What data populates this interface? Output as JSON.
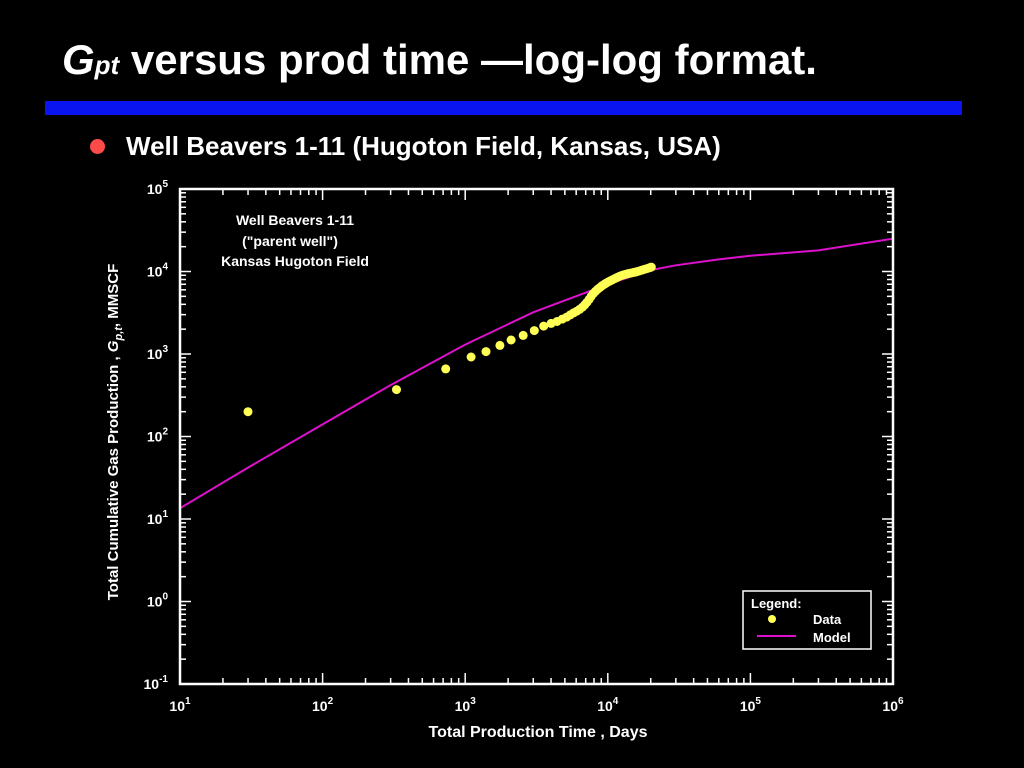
{
  "slide": {
    "title_symbol": "G",
    "title_subscript": "pt",
    "title_rest": " versus prod time —log-log format.",
    "rule_color": "#0a14f0",
    "bullet_color": "#ff4a4a",
    "bullet_text": "Well Beavers 1-11 (Hugoton Field, Kansas, USA)"
  },
  "chart_data": {
    "type": "scatter",
    "x_scale": "log",
    "y_scale": "log",
    "xlim": [
      10,
      1000000
    ],
    "ylim": [
      0.1,
      100000
    ],
    "x_tick_exponents": [
      "1",
      "2",
      "3",
      "4",
      "5",
      "6"
    ],
    "y_tick_exponents": [
      "-1",
      "0",
      "1",
      "2",
      "3",
      "4",
      "5"
    ],
    "tick_base": "10",
    "xlabel": "Total Production Time , Days",
    "ylabel_prefix": "Total Cumulative Gas Production ,  ",
    "ylabel_symbol": "G",
    "ylabel_subscript": "p,t",
    "ylabel_suffix": ", MMSCF",
    "annotation": [
      "Well Beavers 1-11",
      "(\"parent well\")",
      "Kansas Hugoton Field"
    ],
    "legend": {
      "title": "Legend:",
      "position": "bottom-right",
      "items": [
        "Data",
        "Model"
      ]
    },
    "grid": false,
    "series": [
      {
        "name": "Data",
        "kind": "points",
        "color": "#ffff55",
        "points": [
          [
            30,
            200
          ],
          [
            330,
            370
          ],
          [
            730,
            660
          ],
          [
            1100,
            920
          ],
          [
            1400,
            1070
          ],
          [
            1750,
            1270
          ],
          [
            2100,
            1480
          ],
          [
            2550,
            1680
          ],
          [
            3050,
            1920
          ],
          [
            3550,
            2180
          ],
          [
            4000,
            2350
          ],
          [
            4400,
            2480
          ],
          [
            4800,
            2650
          ],
          [
            5150,
            2800
          ],
          [
            5450,
            2980
          ],
          [
            5750,
            3150
          ],
          [
            6050,
            3300
          ],
          [
            6350,
            3480
          ],
          [
            6650,
            3700
          ],
          [
            6900,
            3950
          ],
          [
            7150,
            4250
          ],
          [
            7400,
            4600
          ],
          [
            7650,
            5000
          ],
          [
            7900,
            5400
          ],
          [
            8200,
            5750
          ],
          [
            8500,
            6100
          ],
          [
            8800,
            6400
          ],
          [
            9100,
            6700
          ],
          [
            9400,
            6950
          ],
          [
            9700,
            7200
          ],
          [
            10050,
            7450
          ],
          [
            10400,
            7700
          ],
          [
            10800,
            7950
          ],
          [
            11200,
            8200
          ],
          [
            11600,
            8450
          ],
          [
            12000,
            8700
          ],
          [
            12500,
            8950
          ],
          [
            13000,
            9150
          ],
          [
            13500,
            9300
          ],
          [
            14000,
            9450
          ],
          [
            14600,
            9600
          ],
          [
            15200,
            9750
          ],
          [
            15800,
            9900
          ],
          [
            16500,
            10100
          ],
          [
            17200,
            10350
          ],
          [
            18000,
            10600
          ],
          [
            18800,
            10850
          ],
          [
            19600,
            11100
          ],
          [
            20200,
            11300
          ]
        ]
      },
      {
        "name": "Model",
        "kind": "line",
        "color": "#dd11cc",
        "points": [
          [
            10,
            13.5
          ],
          [
            30,
            42
          ],
          [
            100,
            140
          ],
          [
            300,
            420
          ],
          [
            1000,
            1300
          ],
          [
            3000,
            3200
          ],
          [
            10000,
            7000
          ],
          [
            20000,
            10400
          ],
          [
            30000,
            11900
          ],
          [
            60000,
            14000
          ],
          [
            100000,
            15500
          ],
          [
            300000,
            18000
          ],
          [
            1000000,
            25000
          ]
        ]
      }
    ]
  }
}
